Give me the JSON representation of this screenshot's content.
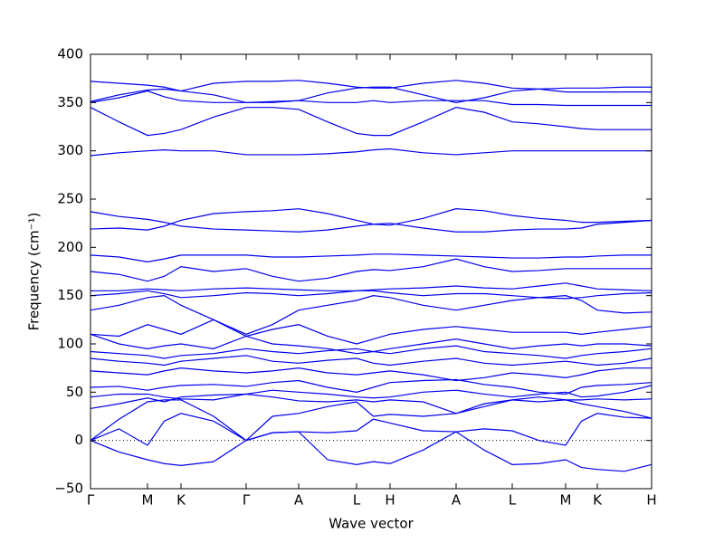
{
  "chart_data": {
    "type": "line",
    "xlabel": "Wave vector",
    "ylabel": "Frequency (cm⁻¹)",
    "color": "#0000ee",
    "reference_line": 0,
    "xlim": [
      0,
      6.2
    ],
    "ylim": [
      -50,
      400
    ],
    "xticks": [
      {
        "value": 0,
        "label": "Γ"
      },
      {
        "value": 0.63,
        "label": "M"
      },
      {
        "value": 1.0,
        "label": "K"
      },
      {
        "value": 1.72,
        "label": "Γ"
      },
      {
        "value": 2.3,
        "label": "A"
      },
      {
        "value": 2.94,
        "label": "L"
      },
      {
        "value": 3.31,
        "label": "H"
      },
      {
        "value": 4.04,
        "label": "A"
      },
      {
        "value": 4.66,
        "label": "L"
      },
      {
        "value": 5.25,
        "label": "M"
      },
      {
        "value": 5.6,
        "label": "K"
      },
      {
        "value": 6.2,
        "label": "H"
      }
    ],
    "yticks": [
      {
        "value": -50,
        "label": "−50"
      },
      0,
      50,
      100,
      150,
      200,
      250,
      300,
      350,
      400
    ],
    "x": [
      0,
      0.315,
      0.63,
      0.815,
      1.0,
      1.36,
      1.72,
      2.01,
      2.3,
      2.62,
      2.94,
      3.125,
      3.31,
      3.675,
      4.04,
      4.35,
      4.66,
      4.955,
      5.25,
      5.425,
      5.6,
      5.9,
      6.2
    ],
    "series": [
      {
        "values": [
          0,
          -12,
          -20,
          -24,
          -26,
          -22,
          0,
          8,
          9,
          -20,
          -25,
          -22,
          -24,
          -10,
          9,
          -10,
          -25,
          -24,
          -20,
          -28,
          -30,
          -32,
          -25
        ]
      },
      {
        "values": [
          0,
          12,
          -5,
          20,
          28,
          20,
          0,
          8,
          9,
          8,
          10,
          22,
          18,
          10,
          9,
          12,
          10,
          0,
          -5,
          20,
          28,
          24,
          23
        ]
      },
      {
        "values": [
          0,
          22,
          40,
          42,
          42,
          25,
          0,
          25,
          28,
          35,
          40,
          25,
          27,
          25,
          28,
          38,
          42,
          40,
          42,
          38,
          35,
          30,
          23
        ]
      },
      {
        "values": [
          33,
          38,
          44,
          40,
          45,
          47,
          48,
          45,
          41,
          40,
          42,
          40,
          42,
          40,
          28,
          35,
          42,
          45,
          42,
          42,
          43,
          42,
          43
        ]
      },
      {
        "values": [
          45,
          48,
          48,
          45,
          43,
          42,
          48,
          52,
          50,
          48,
          45,
          44,
          45,
          50,
          52,
          48,
          45,
          48,
          50,
          45,
          46,
          50,
          57
        ]
      },
      {
        "values": [
          55,
          56,
          52,
          55,
          57,
          58,
          56,
          60,
          62,
          55,
          50,
          55,
          60,
          62,
          63,
          58,
          55,
          50,
          48,
          55,
          57,
          58,
          60
        ]
      },
      {
        "values": [
          72,
          70,
          68,
          72,
          75,
          72,
          70,
          72,
          75,
          70,
          68,
          70,
          72,
          68,
          62,
          65,
          70,
          68,
          65,
          68,
          72,
          75,
          75
        ]
      },
      {
        "values": [
          85,
          82,
          80,
          78,
          82,
          85,
          88,
          82,
          80,
          83,
          85,
          80,
          78,
          82,
          85,
          80,
          78,
          80,
          82,
          80,
          78,
          80,
          85
        ]
      },
      {
        "values": [
          92,
          90,
          88,
          85,
          88,
          90,
          95,
          92,
          90,
          93,
          95,
          92,
          90,
          95,
          98,
          92,
          90,
          88,
          85,
          88,
          90,
          92,
          95
        ]
      },
      {
        "values": [
          110,
          100,
          95,
          98,
          100,
          95,
          108,
          100,
          98,
          95,
          90,
          92,
          95,
          100,
          105,
          100,
          95,
          98,
          100,
          98,
          100,
          100,
          98
        ]
      },
      {
        "values": [
          110,
          108,
          120,
          115,
          110,
          125,
          108,
          115,
          120,
          108,
          100,
          105,
          110,
          115,
          118,
          115,
          112,
          112,
          112,
          110,
          112,
          115,
          118
        ]
      },
      {
        "values": [
          135,
          140,
          148,
          150,
          140,
          125,
          110,
          120,
          135,
          140,
          145,
          150,
          148,
          140,
          135,
          140,
          145,
          148,
          150,
          145,
          135,
          132,
          133
        ]
      },
      {
        "values": [
          150,
          152,
          155,
          152,
          148,
          150,
          153,
          152,
          150,
          152,
          155,
          155,
          153,
          150,
          152,
          152,
          150,
          148,
          147,
          148,
          150,
          152,
          153
        ]
      },
      {
        "values": [
          155,
          155,
          157,
          156,
          155,
          157,
          158,
          157,
          156,
          155,
          155,
          156,
          157,
          158,
          160,
          158,
          157,
          160,
          163,
          160,
          157,
          156,
          155
        ]
      },
      {
        "values": [
          175,
          172,
          165,
          170,
          180,
          175,
          178,
          170,
          165,
          168,
          175,
          177,
          176,
          180,
          188,
          180,
          175,
          176,
          178,
          178,
          178,
          178,
          178
        ]
      },
      {
        "values": [
          192,
          190,
          185,
          188,
          192,
          192,
          192,
          190,
          190,
          191,
          192,
          193,
          193,
          192,
          191,
          190,
          189,
          189,
          190,
          190,
          191,
          192,
          192
        ]
      },
      {
        "values": [
          219,
          220,
          218,
          222,
          228,
          235,
          237,
          238,
          240,
          235,
          228,
          224,
          223,
          230,
          240,
          238,
          233,
          230,
          228,
          226,
          226,
          227,
          228
        ]
      },
      {
        "values": [
          237,
          232,
          229,
          226,
          222,
          219,
          218,
          217,
          216,
          218,
          222,
          224,
          225,
          220,
          216,
          216,
          218,
          219,
          219,
          220,
          224,
          226,
          228
        ]
      },
      {
        "values": [
          295,
          298,
          300,
          301,
          300,
          300,
          296,
          296,
          296,
          297,
          299,
          301,
          302,
          298,
          296,
          298,
          300,
          300,
          300,
          300,
          300,
          300,
          300
        ]
      },
      {
        "values": [
          345,
          330,
          316,
          318,
          322,
          335,
          345,
          345,
          343,
          330,
          318,
          316,
          316,
          330,
          345,
          340,
          330,
          328,
          325,
          323,
          322,
          322,
          322
        ]
      },
      {
        "values": [
          350,
          355,
          362,
          356,
          352,
          350,
          350,
          351,
          352,
          350,
          350,
          352,
          350,
          352,
          352,
          352,
          348,
          348,
          347,
          347,
          347,
          347,
          347
        ]
      },
      {
        "values": [
          351,
          358,
          363,
          364,
          362,
          370,
          372,
          372,
          373,
          370,
          366,
          365,
          365,
          370,
          373,
          370,
          365,
          364,
          361,
          361,
          361,
          361,
          361
        ]
      },
      {
        "values": [
          372,
          370,
          368,
          366,
          362,
          358,
          350,
          350,
          352,
          360,
          365,
          366,
          366,
          358,
          350,
          355,
          362,
          364,
          365,
          365,
          365,
          366,
          366
        ]
      }
    ]
  }
}
